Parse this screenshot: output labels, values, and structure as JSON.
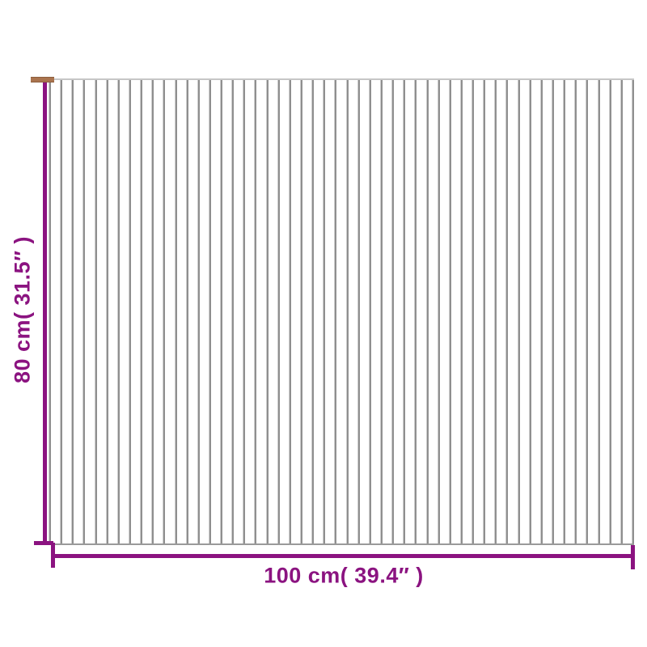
{
  "image": {
    "type": "product-dimension-diagram",
    "product": "slatted mat / rug shown as vertical slats"
  },
  "dimensions": {
    "height_label": "80 cm( 31.5″ )",
    "width_label": "100 cm( 39.4″ )"
  },
  "mat": {
    "slat_count": 52
  },
  "colors": {
    "dimension_line": "#8b1380",
    "label_text": "#8b1380",
    "top_cap_brown": "#aa744e",
    "top_cap_brown_edge": "#8d5f3e",
    "slat_dark": "#8f8f8f",
    "slat_light": "#cfcfcf",
    "mat_top_edge": "#c6c6c6",
    "mat_bottom_edge": "#9a9a9a",
    "background": "#ffffff"
  }
}
